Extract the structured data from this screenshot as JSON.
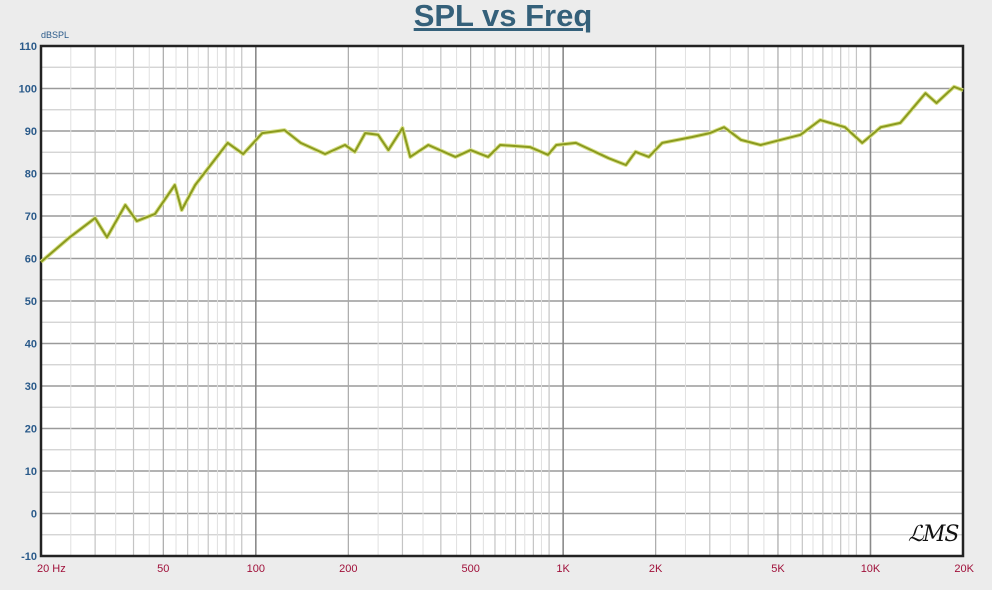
{
  "chart_data": {
    "type": "line",
    "title": "SPL vs Freq",
    "ylabel": "dBSPL",
    "xlabel": "",
    "xscale": "log",
    "xlim": [
      20,
      20000
    ],
    "ylim": [
      -10,
      110
    ],
    "grid": true,
    "yticks": [
      110,
      100,
      90,
      80,
      70,
      60,
      50,
      40,
      30,
      20,
      10,
      0,
      -10
    ],
    "xticks": [
      {
        "value": 20,
        "label": "20  Hz"
      },
      {
        "value": 50,
        "label": "50"
      },
      {
        "value": 100,
        "label": "100"
      },
      {
        "value": 200,
        "label": "200"
      },
      {
        "value": 500,
        "label": "500"
      },
      {
        "value": 1000,
        "label": "1K"
      },
      {
        "value": 2000,
        "label": "2K"
      },
      {
        "value": 5000,
        "label": "5K"
      },
      {
        "value": 10000,
        "label": "10K"
      },
      {
        "value": 20000,
        "label": "20K"
      }
    ],
    "series": [
      {
        "color": "#8a9a1e",
        "x": [
          20,
          24.8,
          30,
          32.8,
          37.6,
          41,
          47,
          54.5,
          57.4,
          63.5,
          81,
          91,
          105,
          124,
          140,
          168,
          195,
          210,
          227,
          250,
          270,
          300,
          318,
          364,
          446,
          500,
          570,
          624,
          780,
          893,
          950,
          1100,
          1406,
          1600,
          1720,
          1900,
          2100,
          2630,
          3000,
          3340,
          3790,
          4390,
          5920,
          6860,
          8260,
          9400,
          10800,
          12500,
          15100,
          16400,
          18700,
          20000
        ],
        "y": [
          59.2,
          65,
          69.5,
          65,
          72.6,
          68.8,
          70.5,
          77.3,
          71.4,
          77.3,
          87.2,
          84.6,
          89.5,
          90.2,
          87.2,
          84.6,
          86.7,
          85.1,
          89.5,
          89.1,
          85.5,
          90.7,
          83.9,
          86.7,
          83.9,
          85.5,
          83.9,
          86.7,
          86.2,
          84.4,
          86.7,
          87.2,
          83.6,
          82,
          85.1,
          83.9,
          87.2,
          88.6,
          89.5,
          90.9,
          87.9,
          86.7,
          89.1,
          92.6,
          90.9,
          87.2,
          90.9,
          91.9,
          98.9,
          96.6,
          100.4,
          99.6
        ]
      }
    ]
  },
  "logo": "LMS"
}
